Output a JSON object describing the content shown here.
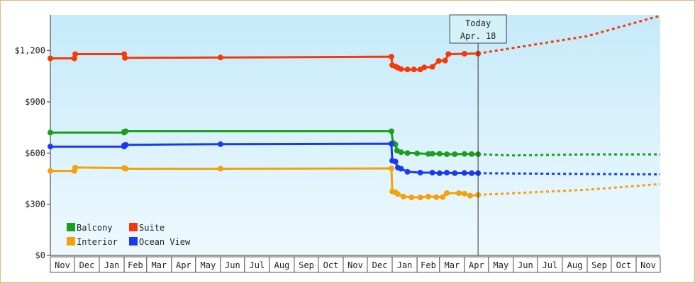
{
  "chart_data": {
    "type": "line",
    "title": "",
    "xlabel": "",
    "ylabel": "",
    "y_ticks": [
      "$0",
      "$300",
      "$600",
      "$900",
      "$1,200"
    ],
    "y_tick_values": [
      0,
      300,
      600,
      900,
      1200
    ],
    "ylim": [
      0,
      1410
    ],
    "x_ticks": [
      "Nov",
      "Dec",
      "Jan",
      "Feb",
      "Mar",
      "Apr",
      "May",
      "Jun",
      "Jul",
      "Aug",
      "Sep",
      "Oct",
      "Nov",
      "Dec",
      "Jan",
      "Feb",
      "Mar",
      "Apr",
      "May",
      "Jun",
      "Jul",
      "Aug",
      "Sep",
      "Oct",
      "Nov"
    ],
    "xlim": [
      "2016-11-01",
      "2018-12-01"
    ],
    "grid": false,
    "today": {
      "line1": "Today",
      "line2": "Apr. 18",
      "date": "2018-04-18"
    },
    "legend_position": "bottom-left",
    "series": [
      {
        "name": "Balcony",
        "color": "#1aa01a",
        "points": [
          [
            "2016-11-01",
            720
          ],
          [
            "2017-02-01",
            720
          ],
          [
            "2017-02-01",
            725
          ],
          [
            "2017-02-03",
            728
          ],
          [
            "2017-12-31",
            728
          ],
          [
            "2018-01-02",
            660
          ],
          [
            "2018-01-05",
            650
          ],
          [
            "2018-01-07",
            615
          ],
          [
            "2018-01-12",
            605
          ],
          [
            "2018-01-20",
            600
          ],
          [
            "2018-02-01",
            598
          ],
          [
            "2018-02-15",
            595
          ],
          [
            "2018-02-20",
            596
          ],
          [
            "2018-03-01",
            596
          ],
          [
            "2018-03-10",
            593
          ],
          [
            "2018-03-20",
            593
          ],
          [
            "2018-04-01",
            595
          ],
          [
            "2018-04-10",
            594
          ],
          [
            "2018-04-18",
            593
          ]
        ],
        "forecast": [
          [
            "2018-04-18",
            593
          ],
          [
            "2018-06-01",
            586
          ],
          [
            "2018-09-01",
            592
          ],
          [
            "2018-12-01",
            592
          ]
        ]
      },
      {
        "name": "Suite",
        "color": "#f53a0a",
        "points": [
          [
            "2016-11-01",
            1155
          ],
          [
            "2016-12-01",
            1155
          ],
          [
            "2016-12-02",
            1180
          ],
          [
            "2017-02-01",
            1180
          ],
          [
            "2017-02-02",
            1158
          ],
          [
            "2017-06-01",
            1160
          ],
          [
            "2017-12-31",
            1165
          ],
          [
            "2018-01-01",
            1115
          ],
          [
            "2018-01-05",
            1108
          ],
          [
            "2018-01-08",
            1100
          ],
          [
            "2018-01-12",
            1092
          ],
          [
            "2018-01-20",
            1090
          ],
          [
            "2018-01-28",
            1090
          ],
          [
            "2018-02-05",
            1090
          ],
          [
            "2018-02-10",
            1102
          ],
          [
            "2018-02-20",
            1105
          ],
          [
            "2018-02-28",
            1140
          ],
          [
            "2018-03-08",
            1142
          ],
          [
            "2018-03-12",
            1180
          ],
          [
            "2018-04-01",
            1182
          ],
          [
            "2018-04-18",
            1183
          ]
        ],
        "forecast": [
          [
            "2018-04-18",
            1183
          ],
          [
            "2018-09-01",
            1285
          ],
          [
            "2018-12-01",
            1405
          ]
        ]
      },
      {
        "name": "Interior",
        "color": "#f5a10a",
        "points": [
          [
            "2016-11-01",
            495
          ],
          [
            "2016-12-01",
            495
          ],
          [
            "2016-12-02",
            515
          ],
          [
            "2017-02-01",
            512
          ],
          [
            "2017-02-03",
            508
          ],
          [
            "2017-06-01",
            508
          ],
          [
            "2017-12-31",
            510
          ],
          [
            "2018-01-01",
            375
          ],
          [
            "2018-01-05",
            370
          ],
          [
            "2018-01-08",
            360
          ],
          [
            "2018-01-15",
            345
          ],
          [
            "2018-01-25",
            340
          ],
          [
            "2018-02-05",
            340
          ],
          [
            "2018-02-15",
            345
          ],
          [
            "2018-02-25",
            342
          ],
          [
            "2018-03-05",
            342
          ],
          [
            "2018-03-10",
            365
          ],
          [
            "2018-03-25",
            365
          ],
          [
            "2018-04-01",
            362
          ],
          [
            "2018-04-08",
            350
          ],
          [
            "2018-04-18",
            355
          ]
        ],
        "forecast": [
          [
            "2018-04-18",
            355
          ],
          [
            "2018-09-01",
            385
          ],
          [
            "2018-12-01",
            418
          ]
        ]
      },
      {
        "name": "Ocean View",
        "color": "#1a3af0",
        "points": [
          [
            "2016-11-01",
            638
          ],
          [
            "2017-02-01",
            638
          ],
          [
            "2017-02-01",
            645
          ],
          [
            "2017-02-03",
            648
          ],
          [
            "2017-06-01",
            652
          ],
          [
            "2017-12-31",
            655
          ],
          [
            "2018-01-01",
            555
          ],
          [
            "2018-01-05",
            550
          ],
          [
            "2018-01-08",
            515
          ],
          [
            "2018-01-12",
            508
          ],
          [
            "2018-01-20",
            490
          ],
          [
            "2018-02-05",
            485
          ],
          [
            "2018-02-20",
            485
          ],
          [
            "2018-03-01",
            482
          ],
          [
            "2018-03-10",
            485
          ],
          [
            "2018-03-20",
            482
          ],
          [
            "2018-04-01",
            483
          ],
          [
            "2018-04-10",
            482
          ],
          [
            "2018-04-18",
            482
          ]
        ],
        "forecast": [
          [
            "2018-04-18",
            482
          ],
          [
            "2018-08-01",
            478
          ],
          [
            "2018-12-01",
            475
          ]
        ]
      }
    ]
  }
}
